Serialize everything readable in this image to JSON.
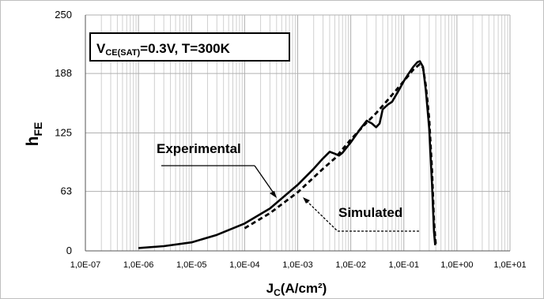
{
  "chart_data": {
    "type": "line",
    "xlabel": {
      "main": "J",
      "sub": "C",
      "unit": "(A/cm²)"
    },
    "ylabel": {
      "main": "h",
      "sub": "FE"
    },
    "x_scale": "log",
    "xlim": [
      1e-07,
      10
    ],
    "ylim": [
      0,
      250
    ],
    "x_tick_values": [
      1e-07,
      1e-06,
      1e-05,
      0.0001,
      0.001,
      0.01,
      0.1,
      1,
      10
    ],
    "x_tick_labels": [
      "1,0E-07",
      "1,0E-06",
      "1,0E-05",
      "1,0E-04",
      "1,0E-03",
      "1,0E-02",
      "1,0E-01",
      "1,0E+00",
      "1,0E+01"
    ],
    "y_tick_values": [
      0,
      63,
      125,
      188,
      250
    ],
    "y_tick_labels": [
      "0",
      "63",
      "125",
      "188",
      "250"
    ],
    "grid": {
      "vertical_log_minor": true,
      "horizontal": true
    },
    "legend_box": {
      "main": "V",
      "sub": "CE(SAT)",
      "rest": "=0.3V,  T=300K"
    },
    "series": [
      {
        "name": "Experimental",
        "style": "solid",
        "points": [
          [
            1e-06,
            3
          ],
          [
            3e-06,
            5
          ],
          [
            1e-05,
            9
          ],
          [
            3e-05,
            17
          ],
          [
            0.0001,
            29
          ],
          [
            0.0003,
            45
          ],
          [
            0.001,
            70
          ],
          [
            0.002,
            87
          ],
          [
            0.003,
            98
          ],
          [
            0.004,
            105
          ],
          [
            0.005,
            103
          ],
          [
            0.006,
            101
          ],
          [
            0.007,
            104
          ],
          [
            0.01,
            115
          ],
          [
            0.015,
            129
          ],
          [
            0.02,
            138
          ],
          [
            0.025,
            135
          ],
          [
            0.03,
            131
          ],
          [
            0.035,
            135
          ],
          [
            0.04,
            150
          ],
          [
            0.05,
            155
          ],
          [
            0.06,
            158
          ],
          [
            0.08,
            170
          ],
          [
            0.1,
            180
          ],
          [
            0.12,
            187
          ],
          [
            0.15,
            195
          ],
          [
            0.18,
            200
          ],
          [
            0.2,
            201
          ],
          [
            0.23,
            195
          ],
          [
            0.26,
            170
          ],
          [
            0.3,
            130
          ],
          [
            0.34,
            70
          ],
          [
            0.37,
            20
          ],
          [
            0.39,
            6
          ]
        ]
      },
      {
        "name": "Simulated",
        "style": "dashed",
        "points": [
          [
            0.0001,
            24
          ],
          [
            0.0003,
            40
          ],
          [
            0.001,
            62
          ],
          [
            0.003,
            87
          ],
          [
            0.005,
            98
          ],
          [
            0.01,
            118
          ],
          [
            0.02,
            136
          ],
          [
            0.03,
            146
          ],
          [
            0.05,
            160
          ],
          [
            0.1,
            180
          ],
          [
            0.15,
            192
          ],
          [
            0.2,
            198
          ],
          [
            0.23,
            194
          ],
          [
            0.26,
            175
          ],
          [
            0.3,
            140
          ],
          [
            0.34,
            85
          ],
          [
            0.37,
            30
          ],
          [
            0.4,
            6
          ]
        ]
      }
    ],
    "annotations": [
      {
        "text": "Experimental",
        "target_series": "Experimental"
      },
      {
        "text": "Simulated",
        "target_series": "Simulated"
      }
    ]
  }
}
